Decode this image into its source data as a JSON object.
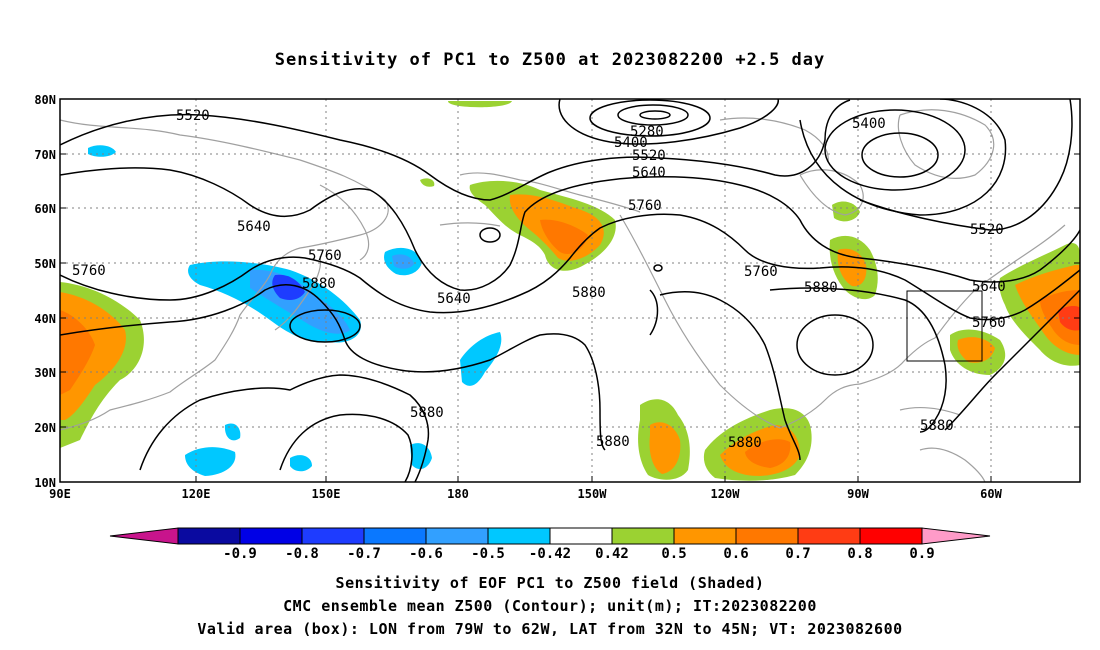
{
  "title": "Sensitivity of PC1 to Z500 at 2023082200 +2.5 day",
  "axes": {
    "lat_labels": [
      "80N",
      "70N",
      "60N",
      "50N",
      "40N",
      "30N",
      "20N",
      "10N"
    ],
    "lon_labels": [
      "90E",
      "120E",
      "150E",
      "180",
      "150W",
      "120W",
      "90W",
      "60W"
    ]
  },
  "contour_labels": [
    "5520",
    "5280",
    "5400",
    "5520",
    "5640",
    "5400",
    "5640",
    "5760",
    "5760",
    "5880",
    "5640",
    "5760",
    "5880",
    "5760",
    "5880",
    "5520",
    "5640",
    "5760",
    "5880",
    "5880",
    "5880",
    "5880"
  ],
  "colorbar": {
    "labels": [
      "-0.9",
      "-0.8",
      "-0.7",
      "-0.6",
      "-0.5",
      "-0.42",
      "0.42",
      "0.5",
      "0.6",
      "0.7",
      "0.8",
      "0.9"
    ],
    "colors": {
      "below": "#c8148c",
      "bins": [
        "#0a0aa0",
        "#0000e6",
        "#1e3cff",
        "#0a78ff",
        "#32a0ff",
        "#00c8ff",
        "#ffffff",
        "#9bd232",
        "#ff9600",
        "#ff7800",
        "#ff3c14",
        "#ff0000"
      ],
      "above": "#ff9bc8"
    }
  },
  "caption": {
    "line1": "Sensitivity of EOF PC1 to Z500 field (Shaded)",
    "line2": "CMC ensemble mean Z500 (Contour); unit(m); IT:2023082200",
    "line3": "Valid area (box): LON from 79W to 62W, LAT from 32N to 45N; VT: 2023082600"
  },
  "map_colors": {
    "contour": "#000000",
    "coast": "#a0a0a0",
    "grid": "#808080"
  }
}
